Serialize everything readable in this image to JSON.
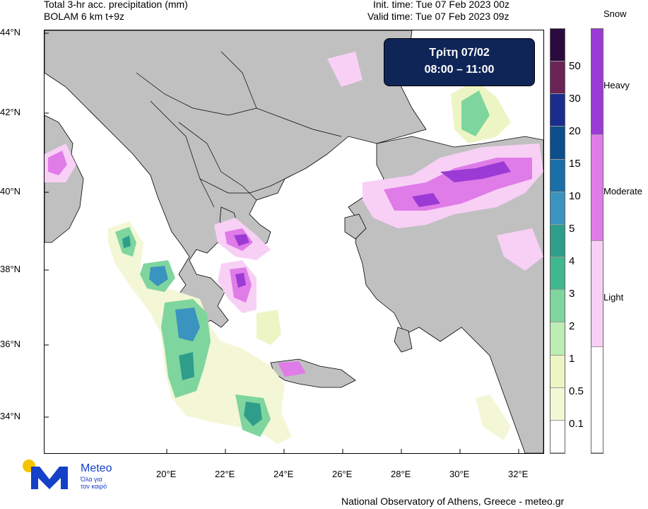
{
  "header": {
    "title_line1": "Total 3-hr acc. precipitation (mm)",
    "title_line2": "BOLAM 6 km t+9z",
    "init_time": "Init. time: Tue 07 Feb 2023 00z",
    "valid_time": "Valid time: Tue 07 Feb 2023 09z"
  },
  "time_box": {
    "day": "Τρίτη 07/02",
    "hours": "08:00 – 11:00"
  },
  "axes": {
    "lat_labels": [
      "44°N",
      "42°N",
      "40°N",
      "38°N",
      "36°N",
      "34°N"
    ],
    "lon_labels": [
      "20°E",
      "22°E",
      "24°E",
      "26°E",
      "28°E",
      "30°E",
      "32°E"
    ]
  },
  "precip_colorbar": {
    "labels": [
      "50",
      "30",
      "20",
      "15",
      "10",
      "5",
      "4",
      "3",
      "2",
      "1",
      "0.5",
      "0.1"
    ],
    "colors": [
      "#2b0a3d",
      "#6a2455",
      "#1a2c8c",
      "#0d4f8c",
      "#1a6fa8",
      "#3a94bf",
      "#2e9e8a",
      "#3fb88d",
      "#7fd59e",
      "#bdedb4",
      "#edf5c4",
      "#f3f7d6",
      "#ffffff"
    ]
  },
  "snow_colorbar": {
    "title": "Snow",
    "labels": [
      "Heavy",
      "Moderate",
      "Light"
    ],
    "colors": [
      "#9c3ad6",
      "#e07ce8",
      "#f8d0f6",
      "#ffffff"
    ]
  },
  "logo": {
    "name": "Meteo",
    "tagline_line1": "Όλα για",
    "tagline_line2": "τον καιρό",
    "accent": "#f5c400",
    "brand": "#1540c8"
  },
  "footer": {
    "credit": "National Observatory of Athens, Greece - meteo.gr"
  }
}
